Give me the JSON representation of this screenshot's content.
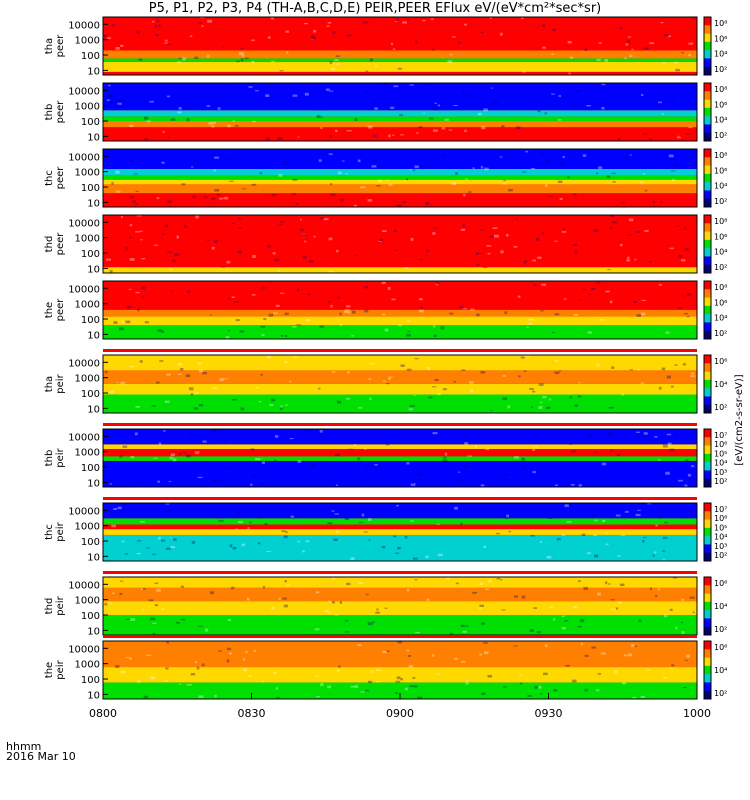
{
  "title": "P5, P1, P2, P3, P4 (TH-A,B,C,D,E) PEIR,PEER EFlux eV/(eV*cm²*sec*sr)",
  "footer": {
    "unit_label": "hhmm",
    "date_label": "2016 Mar 10"
  },
  "colorbar_unit_label": "[eV/(cm2-s-sr-eV)]",
  "colors": {
    "red": "#ff0000",
    "orange": "#ff8000",
    "yellow": "#ffd800",
    "green": "#00e000",
    "cyan": "#00d0d0",
    "blue": "#0000ff",
    "navy": "#000070"
  },
  "chart_data": {
    "type": "heatmap",
    "x_axis": {
      "range": [
        "0800",
        "1000"
      ],
      "tick_labels": [
        "0800",
        "0830",
        "0900",
        "0930",
        "1000"
      ]
    },
    "y_axis": {
      "scale": "log",
      "range": [
        5,
        30000
      ],
      "tick_labels": [
        "10",
        "100",
        "1000",
        "10000"
      ]
    },
    "panels": [
      {
        "label_top": "tha",
        "label_bottom": "peer",
        "colorbar_ticks": [
          "10²",
          "10⁴",
          "10⁶",
          "10⁸"
        ],
        "bands": [
          {
            "from": 8,
            "to": 35,
            "color": "yellow"
          },
          {
            "from": 35,
            "to": 60,
            "color": "green"
          },
          {
            "from": 60,
            "to": 200,
            "color": "orange"
          },
          {
            "from": 200,
            "to": 30000,
            "color": "red"
          }
        ]
      },
      {
        "label_top": "thb",
        "label_bottom": "peer",
        "colorbar_ticks": [
          "10²",
          "10⁴",
          "10⁶",
          "10⁸"
        ],
        "bands": [
          {
            "from": 5,
            "to": 40,
            "color": "red"
          },
          {
            "from": 40,
            "to": 100,
            "color": "orange"
          },
          {
            "from": 100,
            "to": 200,
            "color": "green"
          },
          {
            "from": 200,
            "to": 500,
            "color": "cyan"
          },
          {
            "from": 500,
            "to": 30000,
            "color": "blue"
          }
        ]
      },
      {
        "label_top": "thc",
        "label_bottom": "peer",
        "colorbar_ticks": [
          "10²",
          "10⁴",
          "10⁶",
          "10⁸"
        ],
        "bands": [
          {
            "from": 5,
            "to": 40,
            "color": "red"
          },
          {
            "from": 40,
            "to": 150,
            "color": "orange"
          },
          {
            "from": 150,
            "to": 300,
            "color": "yellow"
          },
          {
            "from": 300,
            "to": 600,
            "color": "green"
          },
          {
            "from": 600,
            "to": 1500,
            "color": "cyan"
          },
          {
            "from": 1500,
            "to": 30000,
            "color": "blue"
          }
        ]
      },
      {
        "label_top": "thd",
        "label_bottom": "peer",
        "colorbar_ticks": [
          "10²",
          "10⁴",
          "10⁶",
          "10⁸"
        ],
        "bands": [
          {
            "from": 5,
            "to": 12,
            "color": "yellow"
          },
          {
            "from": 12,
            "to": 30000,
            "color": "red"
          }
        ]
      },
      {
        "label_top": "the",
        "label_bottom": "peer",
        "colorbar_ticks": [
          "10²",
          "10⁴",
          "10⁶",
          "10⁸"
        ],
        "bands": [
          {
            "from": 5,
            "to": 40,
            "color": "green"
          },
          {
            "from": 40,
            "to": 150,
            "color": "yellow"
          },
          {
            "from": 150,
            "to": 400,
            "color": "orange"
          },
          {
            "from": 400,
            "to": 30000,
            "color": "red"
          }
        ]
      },
      {
        "label_top": "tha",
        "label_bottom": "peir",
        "colorbar_ticks": [
          "10²",
          "10⁴",
          "10⁶"
        ],
        "bands": [
          {
            "from": 5,
            "to": 80,
            "color": "green"
          },
          {
            "from": 80,
            "to": 400,
            "color": "yellow"
          },
          {
            "from": 400,
            "to": 3000,
            "color": "orange"
          },
          {
            "from": 3000,
            "to": 30000,
            "color": "yellow"
          }
        ]
      },
      {
        "label_top": "thb",
        "label_bottom": "peir",
        "colorbar_ticks": [
          "10²",
          "10³",
          "10⁴",
          "10⁵",
          "10⁶",
          "10⁷"
        ],
        "bands": [
          {
            "from": 5,
            "to": 250,
            "color": "blue"
          },
          {
            "from": 250,
            "to": 500,
            "color": "green"
          },
          {
            "from": 500,
            "to": 1500,
            "color": "red"
          },
          {
            "from": 1500,
            "to": 3000,
            "color": "yellow"
          },
          {
            "from": 3000,
            "to": 30000,
            "color": "blue"
          }
        ]
      },
      {
        "label_top": "thc",
        "label_bottom": "peir",
        "colorbar_ticks": [
          "10²",
          "10³",
          "10⁴",
          "10⁵",
          "10⁶",
          "10⁷"
        ],
        "bands": [
          {
            "from": 5,
            "to": 250,
            "color": "cyan"
          },
          {
            "from": 250,
            "to": 600,
            "color": "yellow"
          },
          {
            "from": 600,
            "to": 1200,
            "color": "red"
          },
          {
            "from": 1200,
            "to": 3000,
            "color": "green"
          },
          {
            "from": 3000,
            "to": 30000,
            "color": "blue"
          }
        ]
      },
      {
        "label_top": "thd",
        "label_bottom": "peir",
        "colorbar_ticks": [
          "10²",
          "10⁴",
          "10⁶"
        ],
        "bands": [
          {
            "from": 5,
            "to": 100,
            "color": "green"
          },
          {
            "from": 100,
            "to": 800,
            "color": "yellow"
          },
          {
            "from": 800,
            "to": 6000,
            "color": "orange"
          },
          {
            "from": 6000,
            "to": 30000,
            "color": "yellow"
          }
        ]
      },
      {
        "label_top": "the",
        "label_bottom": "peir",
        "colorbar_ticks": [
          "10²",
          "10⁴",
          "10⁶"
        ],
        "bands": [
          {
            "from": 5,
            "to": 60,
            "color": "green"
          },
          {
            "from": 60,
            "to": 600,
            "color": "yellow"
          },
          {
            "from": 600,
            "to": 30000,
            "color": "orange"
          }
        ]
      }
    ]
  }
}
